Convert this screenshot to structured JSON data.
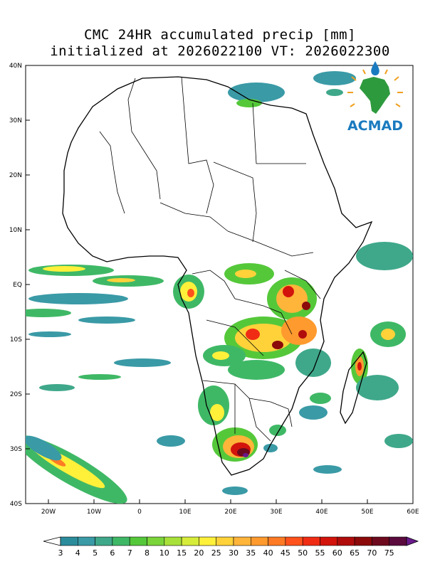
{
  "title": {
    "line1": "CMC 24HR accumulated precip [mm]",
    "line2": "initialized at 2026022100 VT: 2026022300"
  },
  "logo": {
    "text": "ACMAD"
  },
  "axes": {
    "lat_labels": [
      "40N",
      "30N",
      "20N",
      "10N",
      "EQ",
      "10S",
      "20S",
      "30S",
      "40S"
    ],
    "lon_labels": [
      "20W",
      "10W",
      "0",
      "10E",
      "20E",
      "30E",
      "40E",
      "50E",
      "60E"
    ]
  },
  "colorbar": {
    "labels": [
      "3",
      "4",
      "5",
      "6",
      "7",
      "8",
      "10",
      "15",
      "20",
      "25",
      "30",
      "35",
      "40",
      "45",
      "50",
      "55",
      "60",
      "65",
      "70",
      "75"
    ],
    "colors": [
      "#2b8c9c",
      "#3a9aa6",
      "#3fa88a",
      "#3fb866",
      "#55c83a",
      "#7ad43a",
      "#a8e03a",
      "#d6ec3a",
      "#fff03a",
      "#ffd23a",
      "#ffb43a",
      "#ff9a2e",
      "#ff7a24",
      "#ff521c",
      "#f02c14",
      "#d2140c",
      "#b00c0c",
      "#8c0a0a",
      "#6e0a1e",
      "#5a0a3c"
    ],
    "left_arrow_color": "#ffffff",
    "right_arrow_color": "#6a1a8c"
  }
}
